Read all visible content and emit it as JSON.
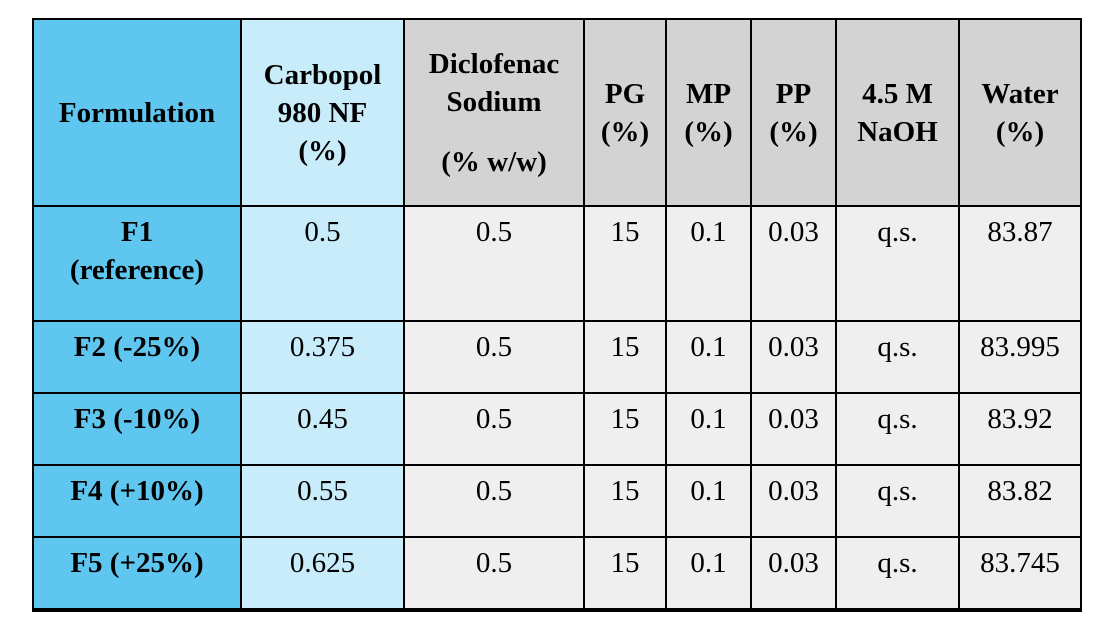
{
  "table": {
    "header": [
      [
        "Formulation"
      ],
      [
        "Carbopol",
        "980 NF",
        "(%)"
      ],
      [
        "Diclofenac",
        "Sodium",
        "(% w/w)"
      ],
      [
        "PG",
        "(%)"
      ],
      [
        "MP",
        "(%)"
      ],
      [
        "PP",
        "(%)"
      ],
      [
        "4.5 M",
        "NaOH"
      ],
      [
        "Water",
        "(%)"
      ]
    ],
    "rows": [
      {
        "label": [
          "F1",
          "(reference)"
        ],
        "cells": [
          "0.5",
          "0.5",
          "15",
          "0.1",
          "0.03",
          "q.s.",
          "83.87"
        ]
      },
      {
        "label": [
          "F2 (-25%)"
        ],
        "cells": [
          "0.375",
          "0.5",
          "15",
          "0.1",
          "0.03",
          "q.s.",
          "83.995"
        ]
      },
      {
        "label": [
          "F3 (-10%)"
        ],
        "cells": [
          "0.45",
          "0.5",
          "15",
          "0.1",
          "0.03",
          "q.s.",
          "83.92"
        ]
      },
      {
        "label": [
          "F4 (+10%)"
        ],
        "cells": [
          "0.55",
          "0.5",
          "15",
          "0.1",
          "0.03",
          "q.s.",
          "83.82"
        ]
      },
      {
        "label": [
          "F5 (+25%)"
        ],
        "cells": [
          "0.625",
          "0.5",
          "15",
          "0.1",
          "0.03",
          "q.s.",
          "83.745"
        ]
      }
    ]
  }
}
